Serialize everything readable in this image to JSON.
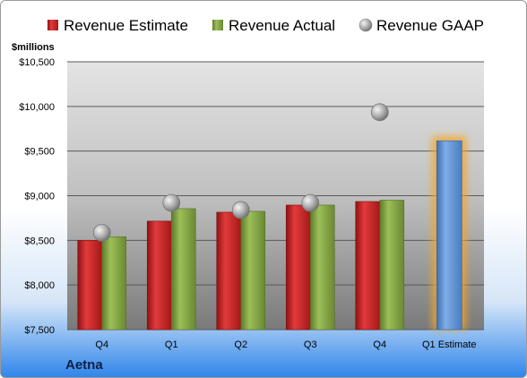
{
  "company": "Aetna",
  "chart_data": {
    "type": "bar",
    "ylabel": "$millions",
    "categories": [
      "Q4",
      "Q1",
      "Q2",
      "Q3",
      "Q4",
      "Q1 Estimate"
    ],
    "ylim": [
      7500,
      10500
    ],
    "yticks": [
      7500,
      8000,
      8500,
      9000,
      9500,
      10000,
      10500
    ],
    "ytick_labels": [
      "$7,500",
      "$8,000",
      "$8,500",
      "$9,000",
      "$9,500",
      "$10,000",
      "$10,500"
    ],
    "grid": true,
    "legend_position": "top",
    "series": [
      {
        "name": "Revenue Estimate",
        "kind": "bar",
        "color": "#d42a2a",
        "values": [
          8500,
          8715,
          8815,
          8895,
          8935,
          null
        ]
      },
      {
        "name": "Revenue Actual",
        "kind": "bar",
        "color": "#8fb04a",
        "values": [
          8540,
          8855,
          8825,
          8895,
          8950,
          null
        ]
      },
      {
        "name": "Revenue GAAP",
        "kind": "marker",
        "color": "#b8b8b8",
        "values": [
          8585,
          8920,
          8840,
          8920,
          9935,
          null
        ]
      },
      {
        "name": "Q1 Estimate",
        "kind": "bar",
        "color": "#6fa0dc",
        "highlight": "#f5a623",
        "values": [
          null,
          null,
          null,
          null,
          null,
          9615
        ]
      }
    ]
  }
}
